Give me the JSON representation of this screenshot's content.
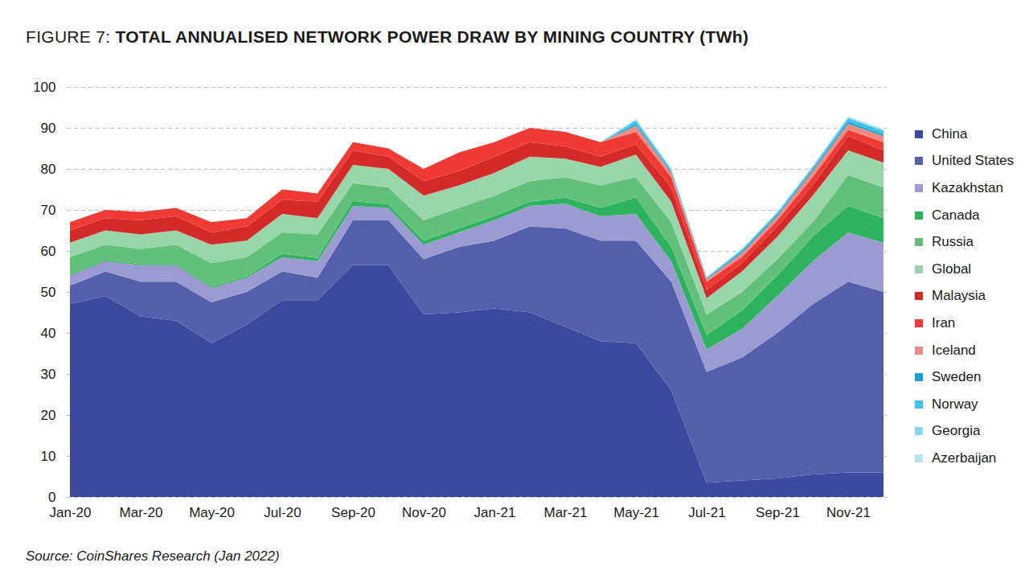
{
  "chart_data": {
    "type": "area",
    "stacked": true,
    "title": "FIGURE 7: TOTAL ANNUALISED NETWORK POWER DRAW BY MINING COUNTRY (TWh)",
    "source": "Source: CoinShares Research (Jan 2022)",
    "categories": [
      "Jan-20",
      null,
      "Mar-20",
      null,
      "May-20",
      null,
      "Jul-20",
      null,
      "Sep-20",
      null,
      "Nov-20",
      null,
      "Jan-21",
      null,
      "Mar-21",
      null,
      "May-21",
      null,
      "Jul-21",
      null,
      "Sep-21",
      null,
      "Nov-21",
      null
    ],
    "ylim": [
      0,
      100
    ],
    "yticks": [
      0,
      10,
      20,
      30,
      40,
      50,
      60,
      70,
      80,
      90,
      100
    ],
    "grid": true,
    "legend": "right",
    "series": [
      {
        "name": "China",
        "color": "#3b4a9e",
        "values": [
          47,
          49,
          44,
          43,
          37.5,
          42,
          48,
          48,
          56.5,
          56.5,
          44.5,
          45,
          46,
          45,
          41.5,
          38,
          37.5,
          26,
          3.5,
          4,
          4.5,
          5.5,
          6,
          6
        ]
      },
      {
        "name": "United States",
        "color": "#5560ad",
        "values": [
          4.5,
          6,
          8.5,
          9.5,
          10,
          8,
          7,
          5.5,
          11,
          11,
          13.5,
          16,
          16.5,
          21,
          24,
          24.5,
          25,
          26.5,
          27,
          30,
          35.5,
          41.5,
          46.5,
          44
        ]
      },
      {
        "name": "Kazakhstan",
        "color": "#9b9bd2",
        "values": [
          2.5,
          2.5,
          4,
          4,
          3.5,
          3.5,
          3.5,
          4,
          3.5,
          3,
          3.5,
          3.5,
          5,
          5,
          6,
          6,
          6.5,
          5,
          5.5,
          7,
          9,
          10.5,
          12,
          12
        ]
      },
      {
        "name": "Canada",
        "color": "#2db35d",
        "values": [
          0.3,
          0.3,
          0.3,
          0.3,
          0.3,
          0.3,
          0.8,
          0.8,
          1.2,
          0.8,
          1,
          1,
          1,
          1,
          1.5,
          2,
          4,
          3.5,
          3.5,
          4.5,
          5,
          6,
          6.5,
          6
        ]
      },
      {
        "name": "Russia",
        "color": "#63c07a",
        "values": [
          4.2,
          3.7,
          3.7,
          4.7,
          5.7,
          4.7,
          5.2,
          5.7,
          4.3,
          4.2,
          5,
          5,
          5,
          5,
          5,
          5.5,
          5,
          6,
          5,
          4.5,
          4,
          3.5,
          7.5,
          7.5
        ]
      },
      {
        "name": "Global",
        "color": "#99d5aa",
        "values": [
          3.5,
          3.5,
          3.5,
          3.5,
          4.5,
          4,
          4.5,
          4,
          4.5,
          4.5,
          6,
          5.5,
          5.5,
          6,
          4.5,
          4.5,
          5.5,
          5,
          4,
          5,
          5.5,
          6.5,
          6,
          6
        ]
      },
      {
        "name": "Malaysia",
        "color": "#d42a2a",
        "values": [
          3,
          3,
          3.5,
          3.5,
          3,
          3.5,
          3.5,
          4,
          3.5,
          3,
          3.5,
          3.5,
          4,
          3.5,
          3,
          2.5,
          2.5,
          3.5,
          2,
          2,
          2.5,
          2.5,
          3.5,
          3
        ]
      },
      {
        "name": "Iran",
        "color": "#ef3b33",
        "values": [
          2,
          2,
          2,
          2,
          2.5,
          2,
          2.5,
          2,
          2,
          2,
          3,
          4.5,
          3.5,
          3.5,
          3.5,
          3.5,
          3,
          2.5,
          2,
          1.5,
          1.5,
          2,
          1.5,
          2
        ]
      },
      {
        "name": "Iceland",
        "color": "#f08a84",
        "values": [
          0,
          0,
          0,
          0,
          0,
          0,
          0,
          0,
          0,
          0,
          0,
          0,
          0,
          0,
          0,
          0,
          1.5,
          1,
          0.5,
          1,
          1,
          1.5,
          1.5,
          1.5
        ]
      },
      {
        "name": "Sweden",
        "color": "#1a9fd0",
        "values": [
          0,
          0,
          0,
          0,
          0,
          0,
          0,
          0,
          0,
          0,
          0,
          0,
          0,
          0,
          0,
          0,
          0.4,
          0.3,
          0.2,
          0.4,
          0.4,
          0.4,
          0.5,
          0.4
        ]
      },
      {
        "name": "Norway",
        "color": "#3cc2ea",
        "values": [
          0,
          0,
          0,
          0,
          0,
          0,
          0,
          0,
          0,
          0,
          0,
          0,
          0,
          0,
          0,
          0,
          0.8,
          0.5,
          0.3,
          0.4,
          0.4,
          0.5,
          0.8,
          0.8
        ]
      },
      {
        "name": "Georgia",
        "color": "#86d4f0",
        "values": [
          0,
          0,
          0,
          0,
          0,
          0,
          0,
          0,
          0,
          0,
          0,
          0,
          0,
          0,
          0,
          0,
          0.3,
          0.2,
          0.1,
          0.2,
          0.2,
          0.2,
          0.3,
          0.3
        ]
      },
      {
        "name": "Azerbaijan",
        "color": "#b8e4f2",
        "values": [
          0,
          0,
          0,
          0,
          0,
          0,
          0,
          0,
          0,
          0,
          0,
          0,
          0,
          0,
          0,
          0,
          0.2,
          0.1,
          0.1,
          0.1,
          0.1,
          0.2,
          0.2,
          0.2
        ]
      }
    ]
  }
}
